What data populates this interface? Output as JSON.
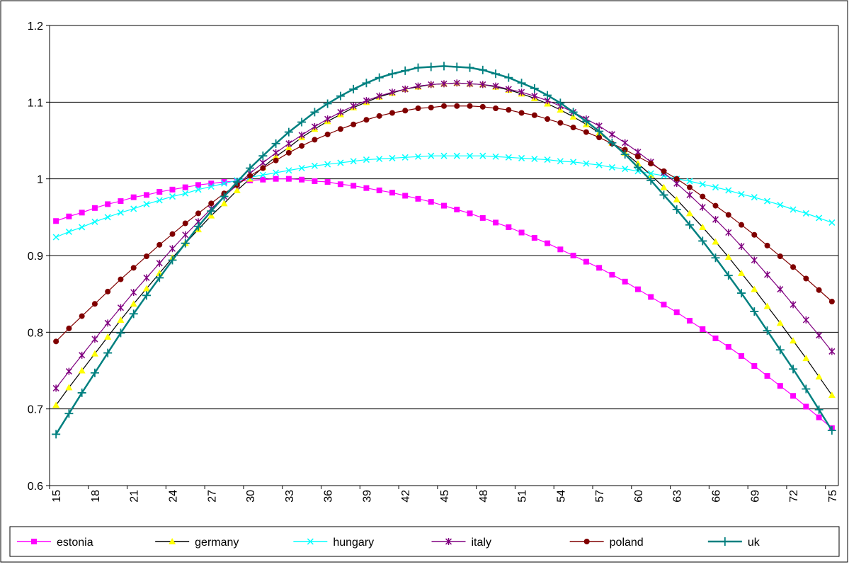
{
  "chart_data": {
    "type": "line",
    "categories": [
      "15",
      null,
      null,
      "18",
      null,
      null,
      "21",
      null,
      null,
      "24",
      null,
      null,
      "27",
      null,
      null,
      "30",
      null,
      null,
      "33",
      null,
      null,
      "36",
      null,
      null,
      "39",
      null,
      null,
      "42",
      null,
      null,
      "45",
      null,
      null,
      "48",
      null,
      null,
      "51",
      null,
      null,
      "54",
      null,
      null,
      "57",
      null,
      null,
      "60",
      null,
      null,
      "63",
      null,
      null,
      "66",
      null,
      null,
      "69",
      null,
      null,
      "72",
      null,
      null,
      "75"
    ],
    "ylim": [
      0.6,
      1.2
    ],
    "yticks": [
      0.6,
      0.7,
      0.8,
      0.9,
      1,
      1.1,
      1.2
    ],
    "grid": true,
    "legend": "bottom",
    "series": [
      {
        "name": "estonia",
        "color": "#ff00ff",
        "marker_color": "#ff00ff",
        "marker": "square",
        "values": [
          0.945,
          0.951,
          0.956,
          0.962,
          0.967,
          0.971,
          0.976,
          0.979,
          0.983,
          0.986,
          0.989,
          0.992,
          0.994,
          0.996,
          0.997,
          0.998,
          0.999,
          1.0,
          1.0,
          0.999,
          0.997,
          0.996,
          0.993,
          0.991,
          0.988,
          0.985,
          0.982,
          0.978,
          0.974,
          0.97,
          0.965,
          0.96,
          0.955,
          0.949,
          0.943,
          0.937,
          0.93,
          0.923,
          0.916,
          0.908,
          0.9,
          0.892,
          0.884,
          0.875,
          0.866,
          0.856,
          0.846,
          0.836,
          0.826,
          0.815,
          0.804,
          0.792,
          0.781,
          0.769,
          0.756,
          0.743,
          0.73,
          0.717,
          0.703,
          0.689,
          0.675
        ]
      },
      {
        "name": "germany",
        "color": "#000000",
        "marker_color": "#ffff00",
        "marker": "triangle",
        "values": [
          0.705,
          0.728,
          0.75,
          0.772,
          0.794,
          0.816,
          0.837,
          0.857,
          0.877,
          0.897,
          0.916,
          0.934,
          0.952,
          0.968,
          0.985,
          1.0,
          1.015,
          1.029,
          1.041,
          1.054,
          1.065,
          1.075,
          1.084,
          1.093,
          1.1,
          1.107,
          1.112,
          1.117,
          1.12,
          1.123,
          1.124,
          1.125,
          1.124,
          1.123,
          1.12,
          1.116,
          1.111,
          1.105,
          1.098,
          1.09,
          1.081,
          1.071,
          1.06,
          1.047,
          1.034,
          1.02,
          1.005,
          0.989,
          0.973,
          0.955,
          0.937,
          0.918,
          0.898,
          0.877,
          0.856,
          0.834,
          0.812,
          0.789,
          0.766,
          0.742,
          0.718
        ]
      },
      {
        "name": "hungary",
        "color": "#00ffff",
        "marker_color": "#00ffff",
        "marker": "x",
        "values": [
          0.924,
          0.931,
          0.937,
          0.944,
          0.95,
          0.956,
          0.961,
          0.967,
          0.972,
          0.977,
          0.981,
          0.986,
          0.99,
          0.994,
          0.998,
          1.002,
          1.005,
          1.008,
          1.011,
          1.014,
          1.017,
          1.019,
          1.021,
          1.023,
          1.025,
          1.026,
          1.027,
          1.028,
          1.029,
          1.03,
          1.03,
          1.03,
          1.03,
          1.03,
          1.029,
          1.028,
          1.027,
          1.026,
          1.025,
          1.023,
          1.022,
          1.02,
          1.018,
          1.015,
          1.013,
          1.01,
          1.007,
          1.004,
          1.0,
          0.997,
          0.993,
          0.989,
          0.985,
          0.98,
          0.976,
          0.971,
          0.966,
          0.96,
          0.955,
          0.949,
          0.943
        ]
      },
      {
        "name": "italy",
        "color": "#800080",
        "marker_color": "#800080",
        "marker": "star",
        "values": [
          0.727,
          0.749,
          0.77,
          0.791,
          0.812,
          0.832,
          0.852,
          0.871,
          0.89,
          0.909,
          0.927,
          0.944,
          0.961,
          0.977,
          0.992,
          1.007,
          1.021,
          1.034,
          1.046,
          1.057,
          1.068,
          1.078,
          1.087,
          1.095,
          1.102,
          1.108,
          1.113,
          1.117,
          1.121,
          1.123,
          1.124,
          1.125,
          1.124,
          1.123,
          1.121,
          1.117,
          1.113,
          1.108,
          1.102,
          1.095,
          1.087,
          1.078,
          1.069,
          1.058,
          1.047,
          1.035,
          1.022,
          1.008,
          0.994,
          0.979,
          0.963,
          0.947,
          0.93,
          0.912,
          0.894,
          0.875,
          0.856,
          0.836,
          0.816,
          0.796,
          0.775
        ]
      },
      {
        "name": "poland",
        "color": "#800000",
        "marker_color": "#800000",
        "marker": "circle",
        "values": [
          0.788,
          0.805,
          0.821,
          0.837,
          0.853,
          0.869,
          0.884,
          0.899,
          0.914,
          0.928,
          0.942,
          0.955,
          0.968,
          0.981,
          0.992,
          1.004,
          1.014,
          1.024,
          1.034,
          1.043,
          1.051,
          1.058,
          1.065,
          1.071,
          1.077,
          1.082,
          1.086,
          1.089,
          1.092,
          1.093,
          1.095,
          1.095,
          1.095,
          1.094,
          1.092,
          1.09,
          1.086,
          1.083,
          1.078,
          1.073,
          1.067,
          1.061,
          1.054,
          1.046,
          1.038,
          1.029,
          1.02,
          1.01,
          1.0,
          0.989,
          0.977,
          0.965,
          0.953,
          0.94,
          0.927,
          0.913,
          0.899,
          0.885,
          0.87,
          0.855,
          0.84
        ]
      },
      {
        "name": "uk",
        "color": "#008080",
        "marker_color": "#008080",
        "marker": "plus",
        "values": [
          0.667,
          0.694,
          0.721,
          0.747,
          0.773,
          0.799,
          0.824,
          0.848,
          0.871,
          0.894,
          0.916,
          0.938,
          0.958,
          0.977,
          0.996,
          1.014,
          1.03,
          1.046,
          1.061,
          1.074,
          1.087,
          1.098,
          1.108,
          1.117,
          1.125,
          1.132,
          1.137,
          1.141,
          1.145,
          1.146,
          1.147,
          1.146,
          1.145,
          1.142,
          1.137,
          1.132,
          1.125,
          1.118,
          1.109,
          1.099,
          1.087,
          1.075,
          1.062,
          1.047,
          1.032,
          1.015,
          0.998,
          0.979,
          0.96,
          0.94,
          0.919,
          0.897,
          0.874,
          0.851,
          0.827,
          0.802,
          0.777,
          0.752,
          0.726,
          0.699,
          0.672
        ]
      }
    ]
  }
}
